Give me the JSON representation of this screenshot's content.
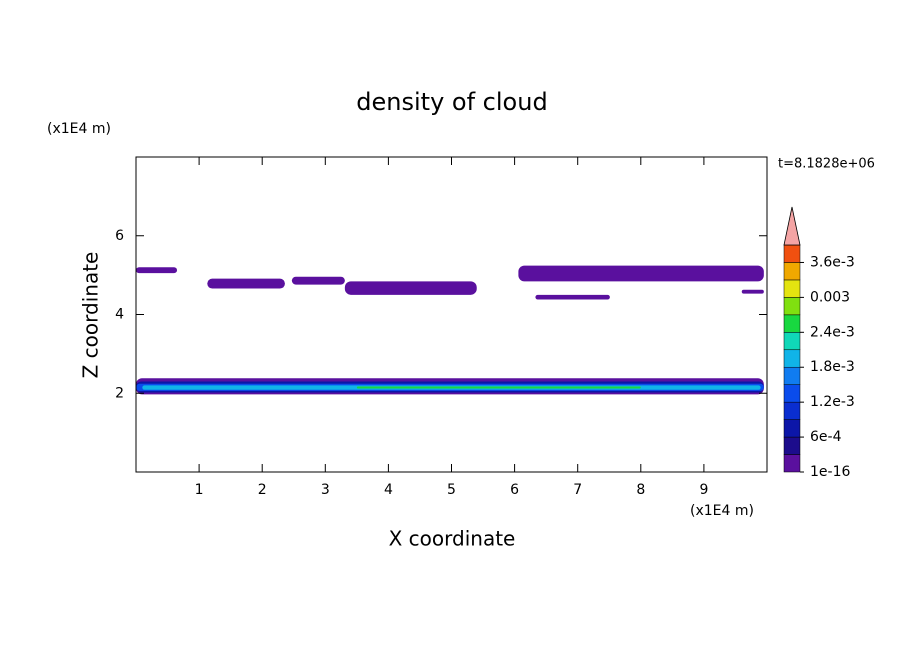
{
  "chart_data": {
    "type": "contour",
    "title": "density of cloud",
    "x_label": "X coordinate",
    "y_label": "Z coordinate",
    "x_unit": "(x1E4 m)",
    "y_unit": "(x1E4 m)",
    "annotation": "t=8.1828e+06",
    "xlim": [
      0,
      10
    ],
    "ylim": [
      0,
      8
    ],
    "xticks": [
      1,
      2,
      3,
      4,
      5,
      6,
      7,
      8,
      9
    ],
    "yticks": [
      2,
      4,
      6
    ],
    "levels": [
      1e-16,
      0.0003,
      0.0006,
      0.0009,
      0.0012,
      0.0015,
      0.0018,
      0.0021,
      0.0024,
      0.0027,
      0.003,
      0.0033,
      0.0036,
      0.0039
    ],
    "colors": [
      "#5a109e",
      "#1c0c8c",
      "#0c16a8",
      "#0a2ed0",
      "#0a4cec",
      "#107cf0",
      "#10b4e8",
      "#10d8b8",
      "#18d840",
      "#80e010",
      "#e4e410",
      "#f0a800",
      "#f05010"
    ],
    "extend_color": "#f4a4a4",
    "cbar_ticks": [
      {
        "value": 1e-16,
        "label": "1e-16"
      },
      {
        "value": 0.0006,
        "label": "6e-4"
      },
      {
        "value": 0.0012,
        "label": "1.2e-3"
      },
      {
        "value": 0.0018,
        "label": "1.8e-3"
      },
      {
        "value": 0.0024,
        "label": "2.4e-3"
      },
      0.003,
      {
        "value": 0.0036,
        "label": "3.6e-3"
      }
    ],
    "regions": [
      {
        "x": [
          0,
          0.65
        ],
        "z": [
          5.05,
          5.2
        ],
        "value": 1e-16
      },
      {
        "x": [
          1.13,
          2.36
        ],
        "z": [
          4.66,
          4.91
        ],
        "value": 1e-16
      },
      {
        "x": [
          2.47,
          3.31
        ],
        "z": [
          4.76,
          4.96
        ],
        "value": 1e-16
      },
      {
        "x": [
          3.31,
          5.4
        ],
        "z": [
          4.5,
          4.84
        ],
        "value": 1e-16
      },
      {
        "x": [
          6.06,
          9.95
        ],
        "z": [
          4.84,
          5.24
        ],
        "value": 1e-16
      },
      {
        "x": [
          6.33,
          7.51
        ],
        "z": [
          4.38,
          4.5
        ],
        "value": 1e-16
      },
      {
        "x": [
          9.6,
          9.95
        ],
        "z": [
          4.53,
          4.63
        ],
        "value": 1e-16
      },
      {
        "x": [
          0,
          9.95
        ],
        "z": [
          1.97,
          2.38
        ],
        "value": 1e-16
      },
      {
        "x": [
          0,
          9.95
        ],
        "z": [
          2.02,
          2.3
        ],
        "value": 0.0006
      },
      {
        "x": [
          0,
          9.95
        ],
        "z": [
          2.06,
          2.24
        ],
        "value": 0.0012
      },
      {
        "x": [
          0.1,
          9.9
        ],
        "z": [
          2.09,
          2.2
        ],
        "value": 0.0018
      },
      {
        "x": [
          3.5,
          8
        ],
        "z": [
          2.12,
          2.17
        ],
        "value": 0.0024
      }
    ]
  }
}
